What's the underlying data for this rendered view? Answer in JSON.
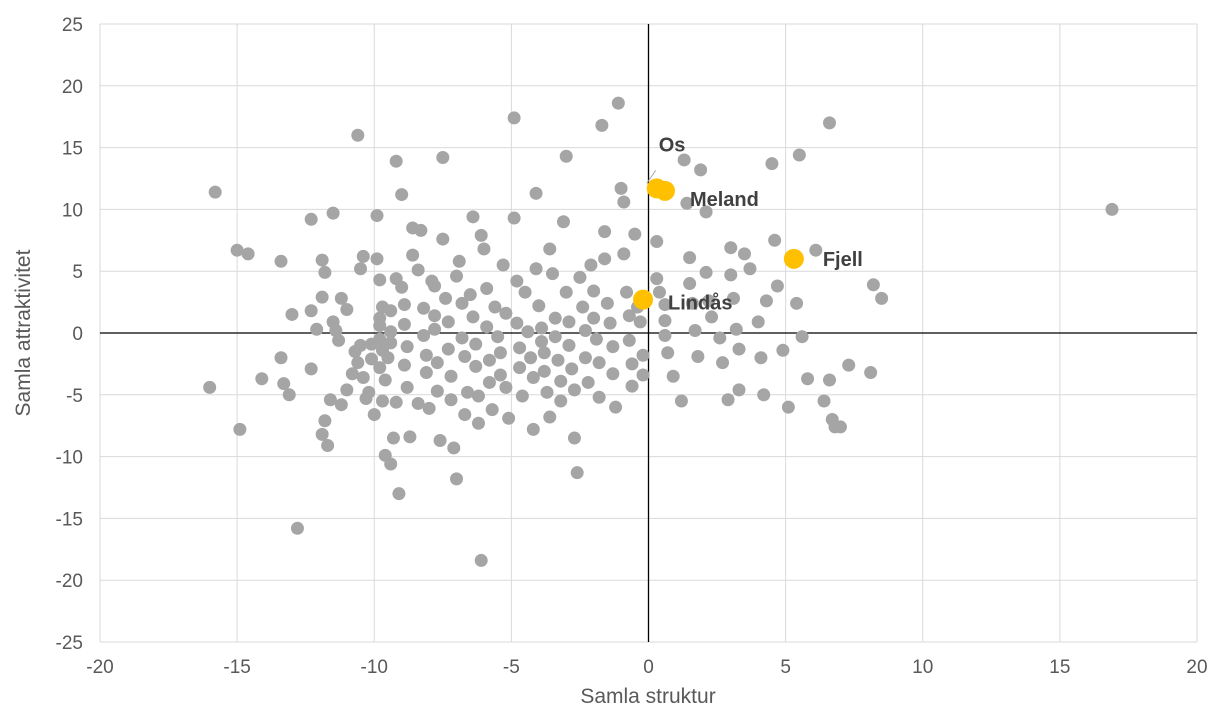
{
  "chart_data": {
    "type": "scatter",
    "title": "",
    "xlabel": "Samla struktur",
    "ylabel": "Samla attraktivitet",
    "xlim": [
      -20,
      20
    ],
    "ylim": [
      -25,
      25
    ],
    "x_ticks": [
      -20,
      -15,
      -10,
      -5,
      0,
      5,
      10,
      15,
      20
    ],
    "y_ticks": [
      -25,
      -20,
      -15,
      -10,
      -5,
      0,
      5,
      10,
      15,
      20,
      25
    ],
    "grid": true,
    "colors": {
      "points": "#a5a5a5",
      "highlight": "#ffc000",
      "grid": "#d9d9d9",
      "zero_axes": "#000000",
      "label_text": "#404040",
      "axis_text": "#595959"
    },
    "series": [
      {
        "points": [
          [
            -15.8,
            11.4
          ],
          [
            -16,
            -4.4
          ],
          [
            -15,
            6.7
          ],
          [
            -14.6,
            6.4
          ],
          [
            -14.9,
            -7.8
          ],
          [
            -14.1,
            -3.7
          ],
          [
            -13.4,
            5.8
          ],
          [
            -13.4,
            -2
          ],
          [
            -13.3,
            -4.1
          ],
          [
            -13,
            1.5
          ],
          [
            -13.1,
            -5
          ],
          [
            -12.8,
            -15.8
          ],
          [
            -12.3,
            9.2
          ],
          [
            -12.3,
            -2.9
          ],
          [
            -12.3,
            1.8
          ],
          [
            -12.1,
            0.3
          ],
          [
            -11.9,
            5.9
          ],
          [
            -11.8,
            4.9
          ],
          [
            -11.9,
            2.9
          ],
          [
            -11.9,
            -8.2
          ],
          [
            -11.8,
            -7.1
          ],
          [
            -11.7,
            -9.1
          ],
          [
            -11.5,
            9.7
          ],
          [
            -11.6,
            -5.4
          ],
          [
            -11.5,
            0.9
          ],
          [
            -11.4,
            0.2
          ],
          [
            -11.2,
            2.8
          ],
          [
            -11.2,
            -5.8
          ],
          [
            -11.3,
            -0.6
          ],
          [
            -11,
            1.9
          ],
          [
            -11,
            -4.6
          ],
          [
            -10.8,
            -3.3
          ],
          [
            -10.6,
            -2.4
          ],
          [
            -10.6,
            16
          ],
          [
            -10.7,
            -1.5
          ],
          [
            -10.5,
            -1
          ],
          [
            -10.4,
            6.2
          ],
          [
            -10.5,
            5.2
          ],
          [
            -10.3,
            -5.3
          ],
          [
            -10.4,
            -3.6
          ],
          [
            -10.2,
            -4.8
          ],
          [
            -10.1,
            -0.9
          ],
          [
            -10.1,
            -2.1
          ],
          [
            -10,
            -6.6
          ],
          [
            -9.9,
            9.5
          ],
          [
            -9.9,
            6
          ],
          [
            -9.8,
            4.3
          ],
          [
            -9.7,
            2.1
          ],
          [
            -9.8,
            1.2
          ],
          [
            -9.8,
            0.6
          ],
          [
            -9.8,
            -0.5
          ],
          [
            -9.7,
            -1.4
          ],
          [
            -9.8,
            -2.8
          ],
          [
            -9.6,
            -3.8
          ],
          [
            -9.7,
            -5.5
          ],
          [
            -9.6,
            -9.9
          ],
          [
            -9.4,
            -10.6
          ],
          [
            -9.5,
            -2
          ],
          [
            -9.4,
            -0.8
          ],
          [
            -9.4,
            0.1
          ],
          [
            -9.4,
            1.8
          ],
          [
            -9.2,
            4.4
          ],
          [
            -9.2,
            -5.6
          ],
          [
            -9.3,
            -8.5
          ],
          [
            -9.1,
            -13
          ],
          [
            -9.2,
            13.9
          ],
          [
            -9,
            11.2
          ],
          [
            -9,
            3.7
          ],
          [
            -8.9,
            2.3
          ],
          [
            -8.9,
            0.7
          ],
          [
            -8.8,
            -1.1
          ],
          [
            -8.9,
            -2.6
          ],
          [
            -8.8,
            -4.4
          ],
          [
            -8.7,
            -8.4
          ],
          [
            -8.6,
            6.3
          ],
          [
            -8.6,
            8.5
          ],
          [
            -8.4,
            5.1
          ],
          [
            -8.4,
            -5.7
          ],
          [
            -8.3,
            8.3
          ],
          [
            -8.2,
            2
          ],
          [
            -8.2,
            -0.2
          ],
          [
            -8.1,
            -1.8
          ],
          [
            -8.1,
            -3.2
          ],
          [
            -8,
            -6.1
          ],
          [
            -7.9,
            4.2
          ],
          [
            -7.8,
            3.8
          ],
          [
            -7.8,
            1.4
          ],
          [
            -7.8,
            0.3
          ],
          [
            -7.7,
            -2.4
          ],
          [
            -7.7,
            -4.7
          ],
          [
            -7.6,
            -8.7
          ],
          [
            -7.5,
            7.6
          ],
          [
            -7.5,
            14.2
          ],
          [
            -7.4,
            2.8
          ],
          [
            -7.3,
            0.9
          ],
          [
            -7.3,
            -1.3
          ],
          [
            -7.2,
            -3.5
          ],
          [
            -7.2,
            -5.4
          ],
          [
            -7.1,
            -9.3
          ],
          [
            -7,
            -11.8
          ],
          [
            -7,
            4.6
          ],
          [
            -6.9,
            5.8
          ],
          [
            -6.8,
            2.4
          ],
          [
            -6.8,
            -0.4
          ],
          [
            -6.7,
            -1.9
          ],
          [
            -6.7,
            -6.6
          ],
          [
            -6.5,
            3.1
          ],
          [
            -6.6,
            -4.8
          ],
          [
            -6.4,
            9.4
          ],
          [
            -6.4,
            1.3
          ],
          [
            -6.3,
            -0.9
          ],
          [
            -6.3,
            -2.7
          ],
          [
            -6.2,
            -5.1
          ],
          [
            -6.2,
            -7.3
          ],
          [
            -6.1,
            -18.4
          ],
          [
            -6.1,
            7.9
          ],
          [
            -6,
            6.8
          ],
          [
            -5.9,
            3.6
          ],
          [
            -5.9,
            0.5
          ],
          [
            -5.8,
            -2.2
          ],
          [
            -5.8,
            -4
          ],
          [
            -5.7,
            -6.2
          ],
          [
            -5.6,
            2.1
          ],
          [
            -5.5,
            -0.3
          ],
          [
            -5.4,
            -1.6
          ],
          [
            -5.4,
            -3.4
          ],
          [
            -5.3,
            5.5
          ],
          [
            -5.2,
            1.6
          ],
          [
            -5.2,
            -4.4
          ],
          [
            -5.1,
            -6.9
          ],
          [
            -4.9,
            17.4
          ],
          [
            -4.9,
            9.3
          ],
          [
            -4.8,
            4.2
          ],
          [
            -4.8,
            0.8
          ],
          [
            -4.7,
            -1.2
          ],
          [
            -4.7,
            -2.8
          ],
          [
            -4.6,
            -5.1
          ],
          [
            -4.5,
            3.3
          ],
          [
            -4.4,
            0.1
          ],
          [
            -4.3,
            -2
          ],
          [
            -4.2,
            -3.6
          ],
          [
            -4.2,
            -7.8
          ],
          [
            -4.1,
            11.3
          ],
          [
            -4.1,
            5.2
          ],
          [
            -4,
            2.2
          ],
          [
            -3.9,
            0.4
          ],
          [
            -3.9,
            -0.7
          ],
          [
            -3.8,
            -1.6
          ],
          [
            -3.8,
            -3.1
          ],
          [
            -3.7,
            -4.8
          ],
          [
            -3.6,
            -6.8
          ],
          [
            -3.6,
            6.8
          ],
          [
            -3.5,
            4.8
          ],
          [
            -3.4,
            1.2
          ],
          [
            -3.4,
            -0.3
          ],
          [
            -3.3,
            -2.2
          ],
          [
            -3.2,
            -3.9
          ],
          [
            -3.2,
            -5.5
          ],
          [
            -3.1,
            9
          ],
          [
            -3,
            14.3
          ],
          [
            -3,
            3.3
          ],
          [
            -2.9,
            0.9
          ],
          [
            -2.9,
            -1
          ],
          [
            -2.8,
            -2.9
          ],
          [
            -2.7,
            -4.6
          ],
          [
            -2.7,
            -8.5
          ],
          [
            -2.6,
            -11.3
          ],
          [
            -2.5,
            4.5
          ],
          [
            -2.4,
            2.1
          ],
          [
            -2.3,
            0.2
          ],
          [
            -2.3,
            -2
          ],
          [
            -2.2,
            -4
          ],
          [
            -2.1,
            5.5
          ],
          [
            -2,
            3.4
          ],
          [
            -2,
            1.2
          ],
          [
            -1.9,
            -0.5
          ],
          [
            -1.8,
            -2.4
          ],
          [
            -1.8,
            -5.2
          ],
          [
            -1.7,
            16.8
          ],
          [
            -1.6,
            8.2
          ],
          [
            -1.6,
            6
          ],
          [
            -1.5,
            2.4
          ],
          [
            -1.4,
            0.8
          ],
          [
            -1.3,
            -1.1
          ],
          [
            -1.3,
            -3.3
          ],
          [
            -1.2,
            -6
          ],
          [
            -1.1,
            18.6
          ],
          [
            -1,
            11.7
          ],
          [
            -0.9,
            10.6
          ],
          [
            -0.9,
            6.4
          ],
          [
            -0.8,
            3.3
          ],
          [
            -0.7,
            1.4
          ],
          [
            -0.7,
            -0.6
          ],
          [
            -0.6,
            -2.5
          ],
          [
            -0.6,
            -4.3
          ],
          [
            -0.5,
            8
          ],
          [
            -0.4,
            2.1
          ],
          [
            -0.3,
            0.9
          ],
          [
            -0.2,
            -1.8
          ],
          [
            -0.2,
            -3.4
          ],
          [
            0.3,
            7.4
          ],
          [
            0.3,
            4.4
          ],
          [
            0.4,
            3.3
          ],
          [
            0.6,
            2.3
          ],
          [
            0.6,
            1
          ],
          [
            0.6,
            -0.2
          ],
          [
            0.7,
            -1.6
          ],
          [
            0.9,
            -3.5
          ],
          [
            1.2,
            -5.5
          ],
          [
            1.3,
            14
          ],
          [
            1.4,
            10.5
          ],
          [
            1.5,
            6.1
          ],
          [
            1.5,
            4
          ],
          [
            1.6,
            2.4
          ],
          [
            1.7,
            0.2
          ],
          [
            1.8,
            -1.9
          ],
          [
            1.9,
            13.2
          ],
          [
            2.1,
            9.8
          ],
          [
            2.1,
            4.9
          ],
          [
            2.2,
            2.6
          ],
          [
            2.3,
            1.3
          ],
          [
            2.6,
            -0.4
          ],
          [
            2.7,
            -2.4
          ],
          [
            2.9,
            -5.4
          ],
          [
            3,
            6.9
          ],
          [
            3,
            4.7
          ],
          [
            3.1,
            2.8
          ],
          [
            3.2,
            0.3
          ],
          [
            3.3,
            -1.3
          ],
          [
            3.3,
            -4.6
          ],
          [
            3.5,
            6.4
          ],
          [
            3.7,
            5.2
          ],
          [
            4,
            0.9
          ],
          [
            4.1,
            -2
          ],
          [
            4.2,
            -5
          ],
          [
            4.3,
            2.6
          ],
          [
            4.5,
            13.7
          ],
          [
            4.6,
            7.5
          ],
          [
            4.7,
            3.8
          ],
          [
            4.9,
            -1.4
          ],
          [
            5.1,
            -6
          ],
          [
            5.4,
            2.4
          ],
          [
            5.5,
            14.4
          ],
          [
            5.6,
            -0.3
          ],
          [
            5.8,
            -3.7
          ],
          [
            6.1,
            6.7
          ],
          [
            6.4,
            -5.5
          ],
          [
            6.6,
            17
          ],
          [
            6.6,
            -3.8
          ],
          [
            6.7,
            -7
          ],
          [
            6.8,
            -7.6
          ],
          [
            7,
            -7.6
          ],
          [
            7.3,
            -2.6
          ],
          [
            8.1,
            -3.2
          ],
          [
            8.2,
            3.9
          ],
          [
            8.5,
            2.8
          ],
          [
            16.9,
            10
          ]
        ]
      },
      {
        "highlight": true,
        "points": [
          {
            "name": "Os",
            "x": 0.3,
            "y": 11.7
          },
          {
            "name": "Meland",
            "x": 0.6,
            "y": 11.5
          },
          {
            "name": "Fjell",
            "x": 5.3,
            "y": 6
          },
          {
            "name": "Lindås",
            "x": -0.2,
            "y": 2.7
          }
        ]
      }
    ]
  }
}
